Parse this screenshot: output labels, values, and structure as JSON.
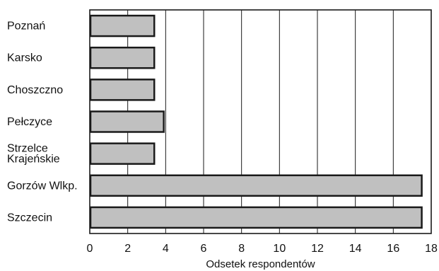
{
  "chart_data": {
    "type": "bar",
    "orientation": "horizontal",
    "categories": [
      [
        "Poznań"
      ],
      [
        "Karsko"
      ],
      [
        "Choszczno"
      ],
      [
        "Pełczyce"
      ],
      [
        "Strzelce",
        "Krajeńskie"
      ],
      [
        "Gorzów Wlkp."
      ],
      [
        "Szczecin"
      ]
    ],
    "values": [
      3.4,
      3.4,
      3.4,
      3.9,
      3.4,
      17.5,
      17.5
    ],
    "xlabel": "Odsetek respondentów",
    "ylabel": "",
    "xlim": [
      0,
      18
    ],
    "xticks": [
      "0",
      "2",
      "4",
      "6",
      "8",
      "10",
      "12",
      "14",
      "16",
      "18"
    ],
    "grid": "vertical",
    "legend": "none",
    "colors": {
      "bar_fill": "#c0c0c0",
      "bar_stroke": "#1a1a1a",
      "grid": "#1a1a1a",
      "frame": "#1a1a1a"
    }
  }
}
